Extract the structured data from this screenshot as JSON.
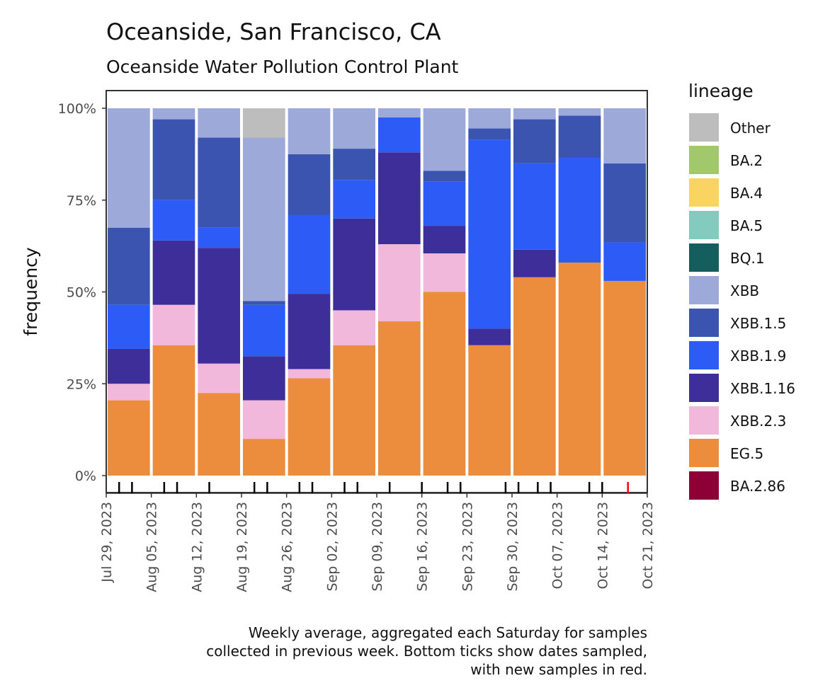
{
  "chart_data": {
    "type": "bar",
    "stacked": true,
    "title": "Oceanside, San Francisco, CA",
    "subtitle": "Oceanside Water Pollution Control Plant",
    "ylabel": "frequency",
    "xlabel": "",
    "ylim": [
      0,
      1
    ],
    "yticks": [
      0,
      0.25,
      0.5,
      0.75,
      1.0
    ],
    "ytick_labels": [
      "0%",
      "25%",
      "50%",
      "75%",
      "100%"
    ],
    "x_axis": {
      "start": "2023-07-29",
      "end": "2023-10-21",
      "tick_labels": [
        "Jul 29, 2023",
        "Aug 05, 2023",
        "Aug 12, 2023",
        "Aug 19, 2023",
        "Aug 26, 2023",
        "Sep 02, 2023",
        "Sep 09, 2023",
        "Sep 16, 2023",
        "Sep 23, 2023",
        "Sep 30, 2023",
        "Oct 07, 2023",
        "Oct 14, 2023",
        "Oct 21, 2023"
      ]
    },
    "legend_title": "lineage",
    "legend_position": "right",
    "lineages": [
      {
        "name": "Other",
        "color": "#BDBDBD"
      },
      {
        "name": "BA.2",
        "color": "#A1C86B"
      },
      {
        "name": "BA.4",
        "color": "#FAD462"
      },
      {
        "name": "BA.5",
        "color": "#83CBBF"
      },
      {
        "name": "BQ.1",
        "color": "#145F5E"
      },
      {
        "name": "XBB",
        "color": "#9DA9D8"
      },
      {
        "name": "XBB.1.5",
        "color": "#3A54AF"
      },
      {
        "name": "XBB.1.9",
        "color": "#2C5BF5"
      },
      {
        "name": "XBB.1.16",
        "color": "#3E2E9A"
      },
      {
        "name": "XBB.2.3",
        "color": "#F1B8DB"
      },
      {
        "name": "EG.5",
        "color": "#EC8C3D"
      },
      {
        "name": "BA.2.86",
        "color": "#8C0035"
      }
    ],
    "stack_order_bottom_to_top": [
      "EG.5",
      "XBB.2.3",
      "XBB.1.16",
      "XBB.1.9",
      "XBB.1.5",
      "XBB",
      "Other",
      "BA.2.86",
      "BQ.1",
      "BA.5",
      "BA.4",
      "BA.2"
    ],
    "bars": [
      {
        "week_start": "2023-07-29",
        "week_end": "2023-08-05",
        "values": {
          "EG.5": 0.205,
          "XBB.2.3": 0.045,
          "XBB.1.16": 0.095,
          "XBB.1.9": 0.12,
          "XBB.1.5": 0.21,
          "XBB": 0.325,
          "Other": 0.0
        }
      },
      {
        "week_start": "2023-08-05",
        "week_end": "2023-08-12",
        "values": {
          "EG.5": 0.355,
          "XBB.2.3": 0.11,
          "XBB.1.16": 0.175,
          "XBB.1.9": 0.11,
          "XBB.1.5": 0.22,
          "XBB": 0.03,
          "Other": 0.0
        }
      },
      {
        "week_start": "2023-08-12",
        "week_end": "2023-08-19",
        "values": {
          "EG.5": 0.225,
          "XBB.2.3": 0.08,
          "XBB.1.16": 0.315,
          "XBB.1.9": 0.055,
          "XBB.1.5": 0.245,
          "XBB": 0.08,
          "Other": 0.0
        }
      },
      {
        "week_start": "2023-08-19",
        "week_end": "2023-08-26",
        "values": {
          "EG.5": 0.1,
          "XBB.2.3": 0.105,
          "XBB.1.16": 0.12,
          "XBB.1.9": 0.14,
          "XBB.1.5": 0.01,
          "XBB": 0.445,
          "Other": 0.08
        }
      },
      {
        "week_start": "2023-08-26",
        "week_end": "2023-09-02",
        "values": {
          "EG.5": 0.265,
          "XBB.2.3": 0.025,
          "XBB.1.16": 0.205,
          "XBB.1.9": 0.215,
          "XBB.1.5": 0.165,
          "XBB": 0.125,
          "Other": 0.0
        }
      },
      {
        "week_start": "2023-09-02",
        "week_end": "2023-09-09",
        "values": {
          "EG.5": 0.355,
          "XBB.2.3": 0.095,
          "XBB.1.16": 0.25,
          "XBB.1.9": 0.105,
          "XBB.1.5": 0.085,
          "XBB": 0.11,
          "Other": 0.0
        }
      },
      {
        "week_start": "2023-09-09",
        "week_end": "2023-09-16",
        "values": {
          "EG.5": 0.42,
          "XBB.2.3": 0.21,
          "XBB.1.16": 0.25,
          "XBB.1.9": 0.095,
          "XBB.1.5": 0.0,
          "XBB": 0.025,
          "Other": 0.0
        }
      },
      {
        "week_start": "2023-09-16",
        "week_end": "2023-09-23",
        "values": {
          "EG.5": 0.5,
          "XBB.2.3": 0.105,
          "XBB.1.16": 0.075,
          "XBB.1.9": 0.12,
          "XBB.1.5": 0.03,
          "XBB": 0.17,
          "Other": 0.0
        }
      },
      {
        "week_start": "2023-09-23",
        "week_end": "2023-09-30",
        "values": {
          "EG.5": 0.355,
          "XBB.2.3": 0.0,
          "XBB.1.16": 0.045,
          "XBB.1.9": 0.515,
          "XBB.1.5": 0.03,
          "XBB": 0.055,
          "Other": 0.0
        }
      },
      {
        "week_start": "2023-09-30",
        "week_end": "2023-10-07",
        "values": {
          "EG.5": 0.54,
          "XBB.2.3": 0.0,
          "XBB.1.16": 0.075,
          "XBB.1.9": 0.235,
          "XBB.1.5": 0.12,
          "XBB": 0.03,
          "Other": 0.0
        }
      },
      {
        "week_start": "2023-10-07",
        "week_end": "2023-10-14",
        "values": {
          "EG.5": 0.58,
          "XBB.2.3": 0.0,
          "XBB.1.16": 0.0,
          "XBB.1.9": 0.285,
          "XBB.1.5": 0.115,
          "XBB": 0.02,
          "Other": 0.0
        }
      },
      {
        "week_start": "2023-10-14",
        "week_end": "2023-10-21",
        "values": {
          "EG.5": 0.53,
          "XBB.2.3": 0.0,
          "XBB.1.16": 0.0,
          "XBB.1.9": 0.105,
          "XBB.1.5": 0.215,
          "XBB": 0.15,
          "Other": 0.0
        }
      }
    ],
    "sample_dates": [
      {
        "date": "2023-07-31",
        "new": false
      },
      {
        "date": "2023-08-02",
        "new": false
      },
      {
        "date": "2023-08-07",
        "new": false
      },
      {
        "date": "2023-08-09",
        "new": false
      },
      {
        "date": "2023-08-14",
        "new": false
      },
      {
        "date": "2023-08-21",
        "new": false
      },
      {
        "date": "2023-08-23",
        "new": false
      },
      {
        "date": "2023-08-28",
        "new": false
      },
      {
        "date": "2023-08-30",
        "new": false
      },
      {
        "date": "2023-09-04",
        "new": false
      },
      {
        "date": "2023-09-06",
        "new": false
      },
      {
        "date": "2023-09-11",
        "new": false
      },
      {
        "date": "2023-09-16",
        "new": false
      },
      {
        "date": "2023-09-20",
        "new": false
      },
      {
        "date": "2023-09-22",
        "new": false
      },
      {
        "date": "2023-09-29",
        "new": false
      },
      {
        "date": "2023-10-01",
        "new": false
      },
      {
        "date": "2023-10-04",
        "new": false
      },
      {
        "date": "2023-10-06",
        "new": false
      },
      {
        "date": "2023-10-12",
        "new": false
      },
      {
        "date": "2023-10-14",
        "new": false
      },
      {
        "date": "2023-10-18",
        "new": true
      }
    ],
    "new_sample_color": "#FF0000",
    "caption_lines": [
      "Weekly average, aggregated each Saturday for samples",
      "collected in previous week. Bottom ticks show dates sampled,",
      "with new samples in red."
    ]
  }
}
